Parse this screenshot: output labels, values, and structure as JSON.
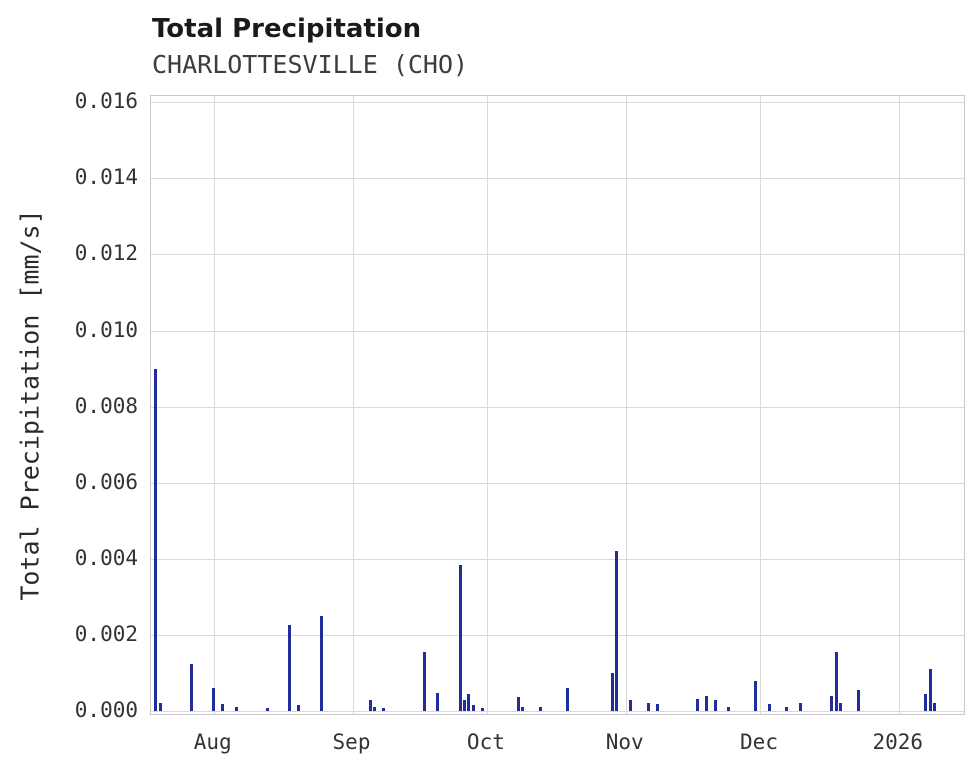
{
  "chart_data": {
    "type": "bar",
    "title": "Total Precipitation",
    "subtitle": "CHARLOTTESVILLE (CHO)",
    "ylabel": "Total Precipitation [mm/s]",
    "xlabel": "",
    "grid": true,
    "legend": false,
    "ylim": [
      -0.00013,
      0.01616
    ],
    "x_axis": {
      "start": "2025-07-18",
      "end": "2026-01-16"
    },
    "colors": {
      "bar": "#202d9b",
      "grid": "#d9d9d9",
      "plot_border": "#c9c9c9",
      "background": "#ffffff"
    },
    "y_ticks": [
      {
        "value": 0.0,
        "label": "0.000"
      },
      {
        "value": 0.002,
        "label": "0.002"
      },
      {
        "value": 0.004,
        "label": "0.004"
      },
      {
        "value": 0.006,
        "label": "0.006"
      },
      {
        "value": 0.008,
        "label": "0.008"
      },
      {
        "value": 0.01,
        "label": "0.010"
      },
      {
        "value": 0.012,
        "label": "0.012"
      },
      {
        "value": 0.014,
        "label": "0.014"
      },
      {
        "value": 0.016,
        "label": "0.016"
      }
    ],
    "x_ticks": [
      {
        "date": "2025-08-01",
        "label": "Aug"
      },
      {
        "date": "2025-09-01",
        "label": "Sep"
      },
      {
        "date": "2025-10-01",
        "label": "Oct"
      },
      {
        "date": "2025-11-01",
        "label": "Nov"
      },
      {
        "date": "2025-12-01",
        "label": "Dec"
      },
      {
        "date": "2026-01-01",
        "label": "2026"
      }
    ],
    "events": [
      {
        "date": "2025-07-19",
        "value": 0.009
      },
      {
        "date": "2025-07-20",
        "value": 0.0002
      },
      {
        "date": "2025-07-27",
        "value": 0.00125
      },
      {
        "date": "2025-08-01",
        "value": 0.0006
      },
      {
        "date": "2025-08-03",
        "value": 0.00018
      },
      {
        "date": "2025-08-06",
        "value": 0.0001
      },
      {
        "date": "2025-08-13",
        "value": 8e-05
      },
      {
        "date": "2025-08-18",
        "value": 0.00225
      },
      {
        "date": "2025-08-20",
        "value": 0.00015
      },
      {
        "date": "2025-08-25",
        "value": 0.0025
      },
      {
        "date": "2025-09-05",
        "value": 0.0003
      },
      {
        "date": "2025-09-06",
        "value": 0.00012
      },
      {
        "date": "2025-09-08",
        "value": 8e-05
      },
      {
        "date": "2025-09-17",
        "value": 0.00155
      },
      {
        "date": "2025-09-20",
        "value": 0.00048
      },
      {
        "date": "2025-09-25",
        "value": 0.00385
      },
      {
        "date": "2025-09-26",
        "value": 0.0003
      },
      {
        "date": "2025-09-27",
        "value": 0.00045
      },
      {
        "date": "2025-09-28",
        "value": 0.00015
      },
      {
        "date": "2025-09-30",
        "value": 8e-05
      },
      {
        "date": "2025-10-08",
        "value": 0.00038
      },
      {
        "date": "2025-10-09",
        "value": 0.00012
      },
      {
        "date": "2025-10-13",
        "value": 0.0001
      },
      {
        "date": "2025-10-19",
        "value": 0.0006
      },
      {
        "date": "2025-10-29",
        "value": 0.001
      },
      {
        "date": "2025-10-30",
        "value": 0.0042
      },
      {
        "date": "2025-11-02",
        "value": 0.0003
      },
      {
        "date": "2025-11-06",
        "value": 0.00022
      },
      {
        "date": "2025-11-08",
        "value": 0.00018
      },
      {
        "date": "2025-11-17",
        "value": 0.00032
      },
      {
        "date": "2025-11-19",
        "value": 0.0004
      },
      {
        "date": "2025-11-21",
        "value": 0.0003
      },
      {
        "date": "2025-11-24",
        "value": 0.00012
      },
      {
        "date": "2025-11-30",
        "value": 0.0008
      },
      {
        "date": "2025-12-03",
        "value": 0.00018
      },
      {
        "date": "2025-12-07",
        "value": 0.0001
      },
      {
        "date": "2025-12-10",
        "value": 0.0002
      },
      {
        "date": "2025-12-17",
        "value": 0.0004
      },
      {
        "date": "2025-12-18",
        "value": 0.00155
      },
      {
        "date": "2025-12-19",
        "value": 0.0002
      },
      {
        "date": "2025-12-23",
        "value": 0.00055
      },
      {
        "date": "2026-01-07",
        "value": 0.00045
      },
      {
        "date": "2026-01-08",
        "value": 0.0011
      },
      {
        "date": "2026-01-09",
        "value": 0.0002
      }
    ]
  }
}
